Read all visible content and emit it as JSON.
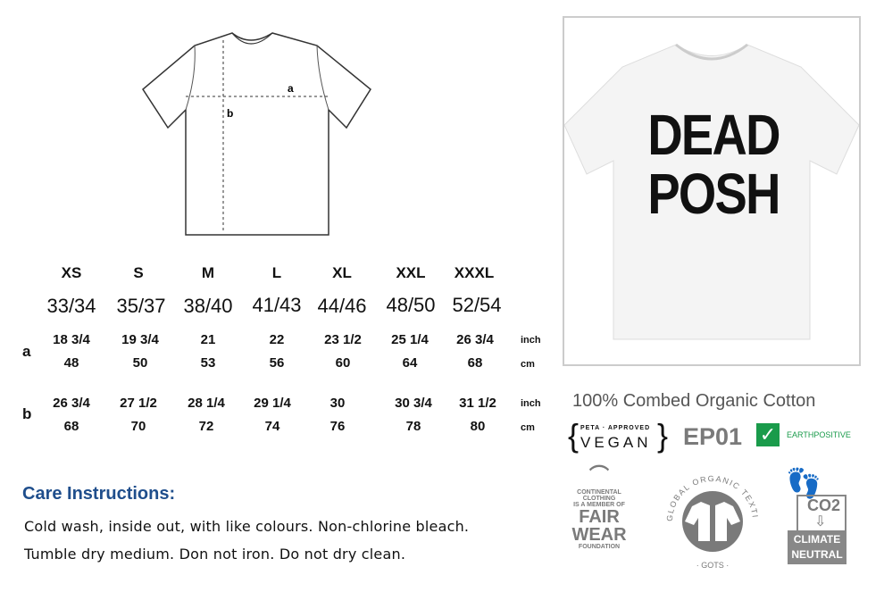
{
  "diagram": {
    "label_a": "a",
    "label_b": "b"
  },
  "size_table": {
    "sizes": [
      "XS",
      "S",
      "M",
      "L",
      "XL",
      "XXL",
      "XXXL"
    ],
    "eu_sizes": [
      "33/34",
      "35/37",
      "38/40",
      "41/43",
      "44/46",
      "48/50",
      "52/54"
    ],
    "rows": [
      {
        "label": "a",
        "inch": [
          "18 3/4",
          "19 3/4",
          "21",
          "22",
          "23 1/2",
          "25 1/4",
          "26 3/4"
        ],
        "cm": [
          "48",
          "50",
          "53",
          "56",
          "60",
          "64",
          "68"
        ]
      },
      {
        "label": "b",
        "inch": [
          "26 3/4",
          "27 1/2",
          "28 1/4",
          "29 1/4",
          "30",
          "30 3/4",
          "31 1/2"
        ],
        "cm": [
          "68",
          "70",
          "72",
          "74",
          "76",
          "78",
          "80"
        ]
      }
    ],
    "unit_inch": "inch",
    "unit_cm": "cm"
  },
  "care": {
    "title": "Care Instructions:",
    "lines": [
      "Cold wash, inside out, with like colours. Non-chlorine bleach.",
      "Tumble dry medium. Don not iron. Do not dry clean."
    ]
  },
  "product": {
    "print_line1": "DEAD",
    "print_line2": "POSH"
  },
  "certifications": {
    "material": "100% Combed Organic Cotton",
    "vegan_small": "PETA · APPROVED",
    "vegan": "VEGAN",
    "ep": "EP01",
    "earthpositive": "EARTHPOSITIVE",
    "earthpositive_color": "#1a9b4b",
    "fairwear": [
      "CONTINENTAL",
      "CLOTHING",
      "IS A MEMBER OF",
      "FAIR",
      "WEAR",
      "FOUNDATION"
    ],
    "gots_ring": "GLOBAL ORGANIC TEXTILE STANDARD",
    "gots": "· GOTS ·",
    "co2": "CO2",
    "climate": "CLIMATE",
    "neutral": "NEUTRAL"
  }
}
